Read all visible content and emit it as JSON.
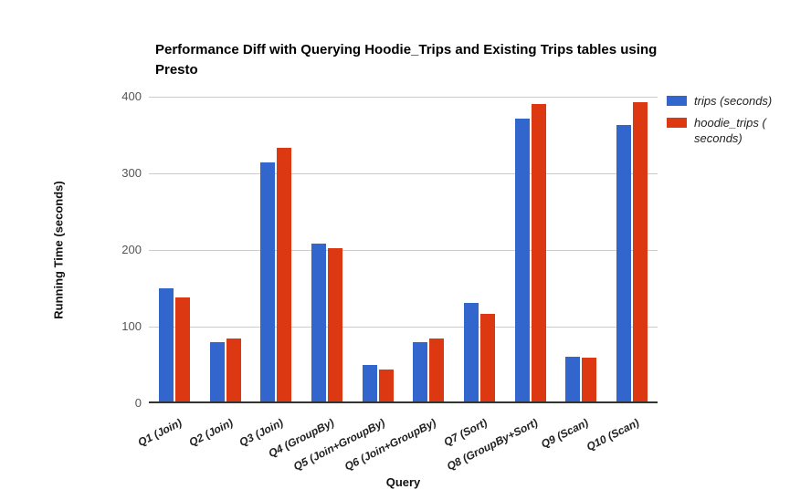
{
  "chart_data": {
    "type": "bar",
    "title": "Performance Diff with Querying Hoodie_Trips and Existing Trips tables using Presto",
    "xlabel": "Query",
    "ylabel": "Running Time (seconds)",
    "categories": [
      "Q1 (Join)",
      "Q2 (Join)",
      "Q3 (Join)",
      "Q4 (GroupBy)",
      "Q5 (Join+GroupBy)",
      "Q6 (Join+GroupBy)",
      "Q7 (Sort)",
      "Q8 (GroupBy+Sort)",
      "Q9 (Scan)",
      "Q10 (Scan)"
    ],
    "series": [
      {
        "name": "trips (seconds)",
        "color": "#3366cc",
        "values": [
          150,
          80,
          314,
          208,
          50,
          80,
          131,
          371,
          61,
          363
        ]
      },
      {
        "name": "hoodie_trips ( seconds)",
        "color": "#dc3912",
        "values": [
          138,
          84,
          333,
          202,
          44,
          84,
          117,
          390,
          59,
          393
        ]
      }
    ],
    "ylim": [
      0,
      400
    ],
    "yticks": [
      0,
      100,
      200,
      300,
      400
    ],
    "grid": true,
    "legend_position": "right"
  },
  "colors": {
    "gridline": "#cccccc",
    "axis_line": "#333333",
    "tick_label": "#555555",
    "title_text": "#000000"
  }
}
